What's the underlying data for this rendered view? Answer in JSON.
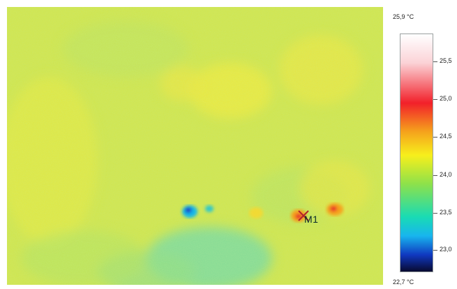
{
  "thermal_image": {
    "marker": {
      "label": "M1",
      "icon": "crosshair-x-icon",
      "color": "#b0242c"
    },
    "dominant_color": "#d6e64a",
    "hot_spot_color": "#e8312a",
    "cold_spot_color": "#1a4fd0"
  },
  "color_scale": {
    "max_label": "25,9 °C",
    "min_label": "22,7 °C",
    "ticks": [
      "25,5",
      "25,0",
      "24,5",
      "24,0",
      "23,5",
      "23,0"
    ],
    "max_value": 25.9,
    "min_value": 22.7,
    "tick_values": [
      25.5,
      25.0,
      24.5,
      24.0,
      23.5,
      23.0
    ],
    "colors": [
      "#ffffff",
      "#f2202a",
      "#f7ef1c",
      "#8ee14a",
      "#19dbb4",
      "#18b5ee",
      "#080a30"
    ]
  }
}
